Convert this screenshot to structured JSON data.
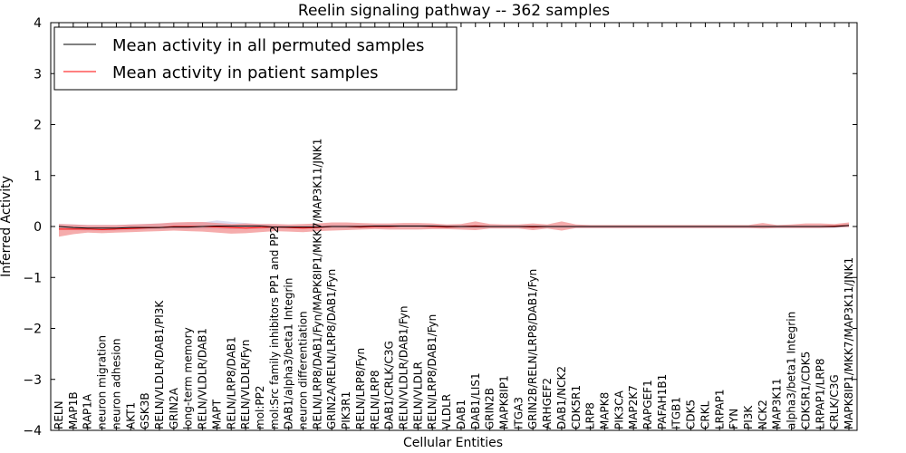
{
  "chart_data": {
    "type": "line",
    "title": "Reelin signaling pathway -- 362 samples",
    "xlabel": "Cellular Entities",
    "ylabel": "Inferred Activity",
    "ylim": [
      -4,
      4
    ],
    "yticks": [
      -4,
      -3,
      -2,
      -1,
      0,
      1,
      2,
      3,
      4
    ],
    "ytick_labels": [
      "−4",
      "−3",
      "−2",
      "−1",
      "0",
      "1",
      "2",
      "3",
      "4"
    ],
    "grid": false,
    "legend": {
      "position": "top-left",
      "entries": [
        {
          "label": "Mean activity in all permuted samples",
          "color": "#000000"
        },
        {
          "label": "Mean activity in patient samples",
          "color": "#ff0000"
        }
      ]
    },
    "categories": [
      "RELN",
      "MAP1B",
      "RAP1A",
      "neuron migration",
      "neuron adhesion",
      "AKT1",
      "GSK3B",
      "RELN/VLDLR/DAB1/PI3K",
      "GRIN2A",
      "long-term memory",
      "RELN/VLDLR/DAB1",
      "MAPT",
      "RELN/LRP8/DAB1",
      "RELN/VLDLR/Fyn",
      "mol:PP2",
      "mol:Src family inhibitors PP1 and PP2",
      "DAB1/alpha3/beta1 Integrin",
      "neuron differentiation",
      "RELN/LRP8/DAB1/Fyn/MAPK8IP1/MKK7/MAP3K11/JNK1",
      "GRIN2A/RELN/LRP8/DAB1/Fyn",
      "PIK3R1",
      "RELN/LRP8/Fyn",
      "RELN/LRP8",
      "DAB1/CRLK/C3G",
      "RELN/VLDLR/DAB1/Fyn",
      "RELN/VLDLR",
      "RELN/LRP8/DAB1/Fyn",
      "VLDLR",
      "DAB1",
      "DAB1/LIS1",
      "GRIN2B",
      "MAPK8IP1",
      "ITGA3",
      "GRIN2B/RELN/LRP8/DAB1/Fyn",
      "ARHGEF2",
      "DAB1/NCK2",
      "CDK5R1",
      "LRP8",
      "MAPK8",
      "PIK3CA",
      "MAP2K7",
      "RAPGEF1",
      "PAFAH1B1",
      "ITGB1",
      "CDK5",
      "CRKL",
      "LRPAP1",
      "FYN",
      "PI3K",
      "NCK2",
      "MAP3K11",
      "alpha3/beta1 Integrin",
      "CDK5R1/CDK5",
      "LRPAP1/LRP8",
      "CRLK/C3G",
      "MAPK8IP1/MKK7/MAP3K11/JNK1"
    ],
    "series": [
      {
        "name": "Mean activity in all permuted samples",
        "color": "#000000",
        "values": [
          0.0,
          -0.02,
          -0.03,
          -0.03,
          -0.03,
          -0.02,
          -0.02,
          -0.02,
          -0.01,
          -0.01,
          0.0,
          0.01,
          0.01,
          0.01,
          0.01,
          -0.01,
          -0.01,
          -0.01,
          -0.01,
          0.0,
          0.0,
          0.0,
          0.01,
          0.01,
          0.01,
          0.01,
          0.01,
          0.0,
          0.0,
          0.0,
          0.0,
          0.0,
          0.0,
          0.0,
          0.0,
          0.0,
          0.0,
          0.0,
          0.0,
          0.0,
          0.0,
          0.0,
          0.0,
          0.0,
          0.0,
          0.0,
          0.0,
          0.0,
          0.0,
          0.0,
          0.0,
          0.0,
          0.0,
          0.0,
          0.0,
          0.02
        ],
        "band": {
          "color": "#c8c8e8",
          "upper": [
            0.05,
            0.04,
            0.03,
            0.03,
            0.03,
            0.04,
            0.05,
            0.06,
            0.07,
            0.07,
            0.08,
            0.12,
            0.09,
            0.07,
            0.05,
            0.04,
            0.03,
            0.03,
            0.03,
            0.04,
            0.04,
            0.04,
            0.04,
            0.04,
            0.04,
            0.04,
            0.04,
            0.03,
            0.03,
            0.03,
            0.02,
            0.02,
            0.02,
            0.02,
            0.02,
            0.02,
            0.02,
            0.02,
            0.02,
            0.02,
            0.02,
            0.02,
            0.02,
            0.02,
            0.02,
            0.02,
            0.02,
            0.02,
            0.02,
            0.02,
            0.02,
            0.02,
            0.02,
            0.02,
            0.02,
            0.05
          ],
          "lower": [
            -0.05,
            -0.07,
            -0.08,
            -0.08,
            -0.08,
            -0.07,
            -0.06,
            -0.05,
            -0.05,
            -0.05,
            -0.05,
            -0.05,
            -0.05,
            -0.04,
            -0.04,
            -0.04,
            -0.04,
            -0.04,
            -0.04,
            -0.03,
            -0.03,
            -0.03,
            -0.03,
            -0.03,
            -0.03,
            -0.03,
            -0.03,
            -0.03,
            -0.03,
            -0.03,
            -0.03,
            -0.03,
            -0.03,
            -0.03,
            -0.03,
            -0.03,
            -0.03,
            -0.03,
            -0.03,
            -0.03,
            -0.03,
            -0.03,
            -0.03,
            -0.03,
            -0.03,
            -0.03,
            -0.03,
            -0.03,
            -0.03,
            -0.03,
            -0.03,
            -0.03,
            -0.03,
            -0.03,
            -0.03,
            -0.01
          ]
        }
      },
      {
        "name": "Mean activity in patient samples",
        "color": "#ff0000",
        "values": [
          -0.05,
          -0.05,
          -0.05,
          -0.06,
          -0.05,
          -0.04,
          -0.03,
          -0.02,
          0.0,
          0.0,
          0.0,
          -0.01,
          -0.02,
          -0.03,
          -0.02,
          -0.01,
          -0.02,
          -0.03,
          -0.02,
          0.0,
          0.0,
          -0.01,
          0.0,
          0.0,
          0.01,
          0.01,
          0.0,
          -0.01,
          0.0,
          0.01,
          0.0,
          0.0,
          0.0,
          -0.01,
          0.0,
          0.0,
          0.0,
          0.0,
          0.0,
          0.0,
          0.0,
          0.0,
          0.0,
          0.0,
          0.0,
          0.0,
          0.0,
          0.0,
          0.0,
          0.0,
          0.0,
          0.0,
          0.0,
          0.0,
          0.01,
          0.02
        ],
        "band": {
          "color": "#f08080",
          "upper": [
            0.05,
            0.04,
            0.03,
            0.03,
            0.03,
            0.04,
            0.05,
            0.06,
            0.08,
            0.09,
            0.09,
            0.07,
            0.05,
            0.06,
            0.05,
            0.05,
            0.04,
            0.05,
            0.06,
            0.08,
            0.08,
            0.07,
            0.06,
            0.06,
            0.07,
            0.07,
            0.06,
            0.04,
            0.05,
            0.1,
            0.05,
            0.04,
            0.04,
            0.06,
            0.04,
            0.1,
            0.04,
            0.03,
            0.03,
            0.03,
            0.03,
            0.03,
            0.03,
            0.03,
            0.03,
            0.03,
            0.03,
            0.03,
            0.03,
            0.07,
            0.03,
            0.04,
            0.06,
            0.06,
            0.05,
            0.08
          ],
          "lower": [
            -0.2,
            -0.15,
            -0.12,
            -0.13,
            -0.12,
            -0.11,
            -0.1,
            -0.09,
            -0.08,
            -0.09,
            -0.1,
            -0.12,
            -0.14,
            -0.13,
            -0.11,
            -0.09,
            -0.1,
            -0.11,
            -0.09,
            -0.08,
            -0.07,
            -0.06,
            -0.05,
            -0.06,
            -0.06,
            -0.06,
            -0.05,
            -0.05,
            -0.06,
            -0.07,
            -0.04,
            -0.04,
            -0.04,
            -0.07,
            -0.04,
            -0.08,
            -0.03,
            -0.03,
            -0.03,
            -0.03,
            -0.03,
            -0.03,
            -0.03,
            -0.03,
            -0.03,
            -0.03,
            -0.03,
            -0.03,
            -0.03,
            -0.04,
            -0.03,
            -0.03,
            -0.03,
            -0.03,
            -0.02,
            -0.01
          ]
        }
      }
    ]
  }
}
